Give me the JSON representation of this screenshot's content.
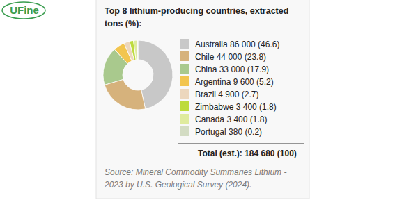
{
  "logo": "UFine",
  "chart_data": {
    "type": "donut",
    "title": "Top 8 lithium-producing countries, extracted tons (%):",
    "categories": [
      "Australia",
      "Chile",
      "China",
      "Argentina",
      "Brazil",
      "Zimbabwe",
      "Canada",
      "Portugal"
    ],
    "values": [
      86000,
      44000,
      33000,
      9600,
      4900,
      3400,
      3400,
      380
    ],
    "value_labels": [
      "86 000",
      "44 000",
      "33 000",
      "9 600",
      "4 900",
      "3 400",
      "3 400",
      "380"
    ],
    "percentages": [
      {
        "value": 46.6,
        "label": "(46.6)"
      },
      {
        "value": 23.8,
        "label": "(23.8)"
      },
      {
        "value": 17.9,
        "label": "(17.9)"
      },
      {
        "value": 5.2,
        "label": "(5.2)"
      },
      {
        "value": 2.7,
        "label": "(2.7)"
      },
      {
        "value": 1.8,
        "label": "(1.8)"
      },
      {
        "value": 1.8,
        "label": "(1.8)"
      },
      {
        "value": 0.2,
        "label": "(0.2)"
      }
    ],
    "colors": [
      "#c8c8c8",
      "#d6b27c",
      "#a9c98d",
      "#f2c54f",
      "#ecd7bd",
      "#bddb3c",
      "#dfeb9e",
      "#d3dcc3"
    ],
    "legend": "right",
    "total_label": "Total (est.):",
    "total": {
      "value": 184680,
      "label": "184 680"
    },
    "total_percentage": {
      "value": 100,
      "label": "(100)"
    },
    "source": "Source: Mineral Commodity Summaries Lithium - 2023 by U.S. Geological Survey (2024)."
  }
}
